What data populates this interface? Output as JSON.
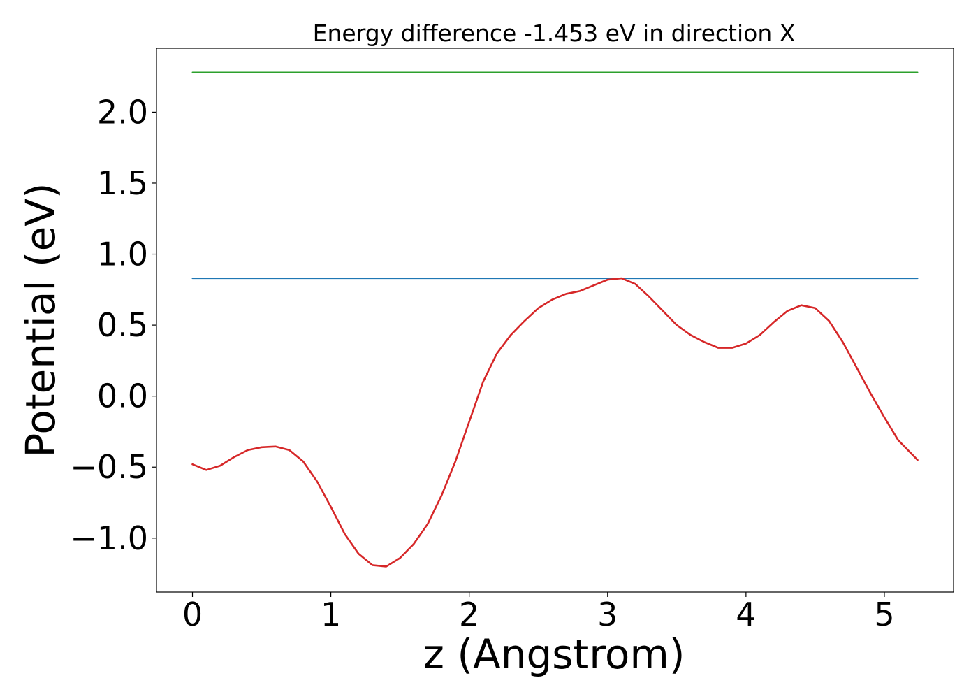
{
  "chart_data": {
    "type": "line",
    "title": "Energy difference -1.453 eV in direction X",
    "xlabel": "z (Angstrom)",
    "ylabel": "Potential (eV)",
    "xlim": [
      -0.26,
      5.5
    ],
    "ylim": [
      -1.38,
      2.45
    ],
    "grid": false,
    "x_ticks": [
      0,
      1,
      2,
      3,
      4,
      5
    ],
    "x_tick_labels": [
      "0",
      "1",
      "2",
      "3",
      "4",
      "5"
    ],
    "y_ticks": [
      -1.0,
      -0.5,
      0.0,
      0.5,
      1.0,
      1.5,
      2.0
    ],
    "y_tick_labels": [
      "−1.0",
      "−0.5",
      "0.0",
      "0.5",
      "1.0",
      "1.5",
      "2.0"
    ],
    "series": [
      {
        "color": "#2ca02c",
        "x": [
          0,
          5.24
        ],
        "y": [
          2.28,
          2.28
        ]
      },
      {
        "color": "#1f77b4",
        "x": [
          0,
          5.24
        ],
        "y": [
          0.83,
          0.83
        ]
      },
      {
        "color": "#d62728",
        "x": [
          0,
          0.1,
          0.2,
          0.3,
          0.4,
          0.5,
          0.6,
          0.7,
          0.8,
          0.9,
          1.0,
          1.1,
          1.2,
          1.3,
          1.4,
          1.5,
          1.6,
          1.7,
          1.8,
          1.9,
          2.0,
          2.1,
          2.2,
          2.3,
          2.4,
          2.5,
          2.6,
          2.7,
          2.8,
          2.9,
          3.0,
          3.1,
          3.2,
          3.3,
          3.4,
          3.5,
          3.6,
          3.7,
          3.8,
          3.9,
          4.0,
          4.1,
          4.2,
          4.3,
          4.4,
          4.5,
          4.6,
          4.7,
          4.8,
          4.9,
          5.0,
          5.1,
          5.2,
          5.24
        ],
        "y": [
          -0.48,
          -0.52,
          -0.49,
          -0.43,
          -0.38,
          -0.36,
          -0.355,
          -0.38,
          -0.46,
          -0.6,
          -0.78,
          -0.97,
          -1.11,
          -1.19,
          -1.2,
          -1.14,
          -1.04,
          -0.9,
          -0.7,
          -0.46,
          -0.18,
          0.1,
          0.3,
          0.43,
          0.53,
          0.62,
          0.68,
          0.72,
          0.74,
          0.78,
          0.82,
          0.83,
          0.79,
          0.7,
          0.6,
          0.5,
          0.43,
          0.38,
          0.34,
          0.34,
          0.37,
          0.43,
          0.52,
          0.6,
          0.64,
          0.62,
          0.53,
          0.38,
          0.2,
          0.02,
          -0.15,
          -0.31,
          -0.41,
          -0.45
        ]
      }
    ]
  }
}
